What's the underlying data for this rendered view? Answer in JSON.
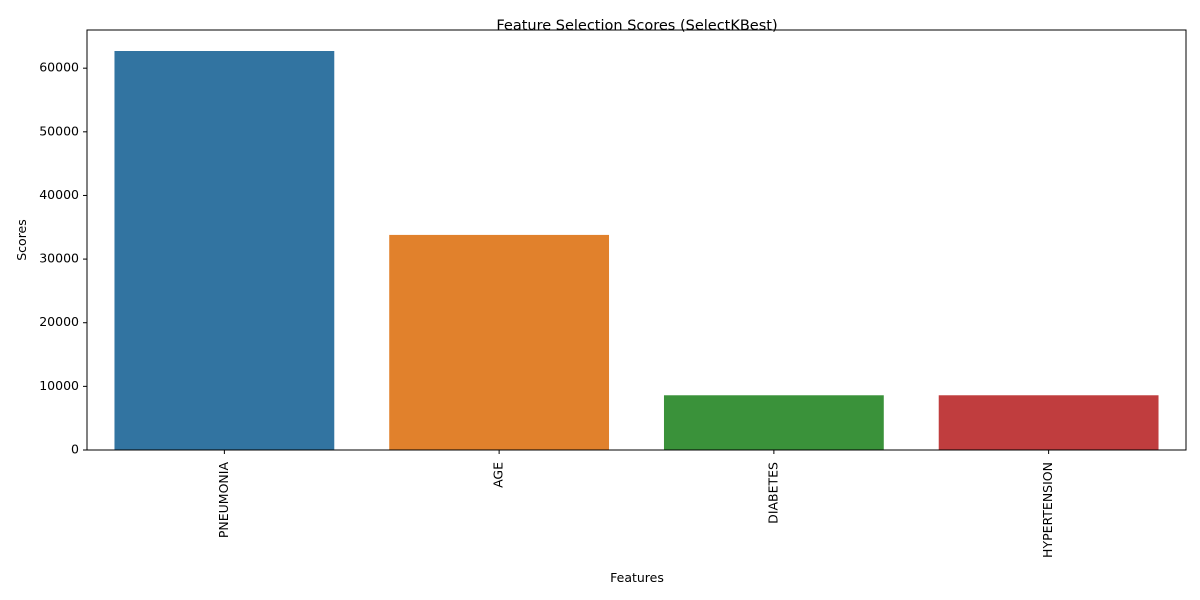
{
  "chart_data": {
    "type": "bar",
    "title": "Feature Selection Scores (SelectKBest)",
    "xlabel": "Features",
    "ylabel": "Scores",
    "categories": [
      "PNEUMONIA",
      "AGE",
      "DIABETES",
      "HYPERTENSION"
    ],
    "values": [
      62700,
      33800,
      8600,
      8600
    ],
    "colors": [
      "#3274a1",
      "#e1812c",
      "#3a923a",
      "#c03d3e"
    ],
    "ylim": [
      0,
      66000
    ],
    "yticks": [
      0,
      10000,
      20000,
      30000,
      40000,
      50000,
      60000
    ],
    "grid": false,
    "x_tick_rotation": "vertical"
  }
}
